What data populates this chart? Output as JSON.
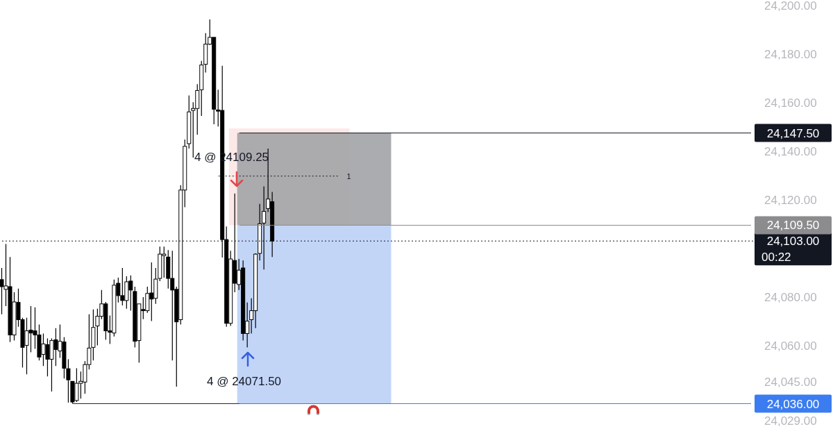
{
  "chart_data": {
    "type": "candlestick",
    "categories": [
      null,
      null,
      null,
      null,
      null,
      null,
      null,
      null,
      null,
      null,
      null,
      null,
      null,
      null,
      null,
      null,
      null,
      null,
      null,
      null,
      null,
      null,
      null,
      null,
      null,
      null,
      null,
      null,
      null,
      null,
      null,
      null,
      null,
      null,
      null,
      null,
      null,
      null,
      null,
      null,
      null,
      null,
      null,
      null,
      null,
      null,
      null,
      null,
      null,
      null,
      null,
      null,
      null,
      null,
      null,
      null,
      null,
      null,
      null,
      null,
      null,
      null,
      null,
      null,
      null,
      null,
      null,
      null,
      null,
      null,
      null,
      null,
      null,
      null,
      null,
      null,
      null,
      null,
      null,
      null,
      null,
      null,
      null,
      null,
      null,
      null,
      null,
      null,
      null,
      null,
      null,
      null,
      null,
      null,
      null,
      null,
      null,
      null,
      null,
      null,
      null,
      null,
      null,
      null,
      null,
      null,
      null,
      null,
      null,
      null,
      null,
      null,
      null,
      null,
      null,
      null,
      null,
      null,
      null,
      null,
      null,
      null,
      null,
      null,
      null,
      null,
      null,
      null,
      null,
      null,
      null,
      null,
      null,
      null,
      null,
      null,
      null,
      null,
      null,
      null,
      null,
      null,
      null,
      null,
      null,
      null,
      null,
      null,
      null,
      null,
      null,
      null,
      null,
      null,
      null,
      null,
      null,
      null,
      null,
      null,
      null,
      null,
      null,
      null,
      null,
      null,
      null,
      null,
      null,
      null,
      null,
      null,
      null,
      null,
      null,
      null,
      null,
      null,
      null,
      null,
      null
    ],
    "ohlc": [
      [
        24087.1,
        24091.9,
        24072.8,
        24084.2
      ],
      [
        24083.1,
        24101.8,
        24076.2,
        24084.5
      ],
      [
        24084.2,
        24096.4,
        24061.4,
        24064.3
      ],
      [
        24064.3,
        24081.9,
        24062.0,
        24077.9
      ],
      [
        24077.7,
        24083.4,
        24067.7,
        24070.6
      ],
      [
        24070.6,
        24071.4,
        24050.9,
        24059.2
      ],
      [
        24060.0,
        24071.4,
        24048.1,
        24066.0
      ],
      [
        24066.3,
        24076.2,
        24057.2,
        24065.1
      ],
      [
        24066.0,
        24075.7,
        24058.6,
        24064.3
      ],
      [
        24064.3,
        24068.6,
        24053.8,
        24055.2
      ],
      [
        24056.3,
        24064.9,
        24051.5,
        24060.6
      ],
      [
        24060.3,
        24062.9,
        24047.2,
        24054.3
      ],
      [
        24054.3,
        24062.9,
        24041.0,
        24062.0
      ],
      [
        24062.3,
        24067.1,
        24051.5,
        24058.3
      ],
      [
        24057.7,
        24068.6,
        24054.9,
        24061.7
      ],
      [
        24061.4,
        24063.4,
        24046.4,
        24050.6
      ],
      [
        24050.4,
        24054.3,
        24036.4,
        24045.8
      ],
      [
        24045.2,
        24045.2,
        24036.0,
        24036.7
      ],
      [
        24037.3,
        24050.6,
        24036.7,
        24044.4
      ],
      [
        24044.4,
        24049.2,
        24038.1,
        24045.2
      ],
      [
        24044.9,
        24053.5,
        24040.1,
        24052.1
      ],
      [
        24052.1,
        24072.8,
        24050.1,
        24058.9
      ],
      [
        24059.2,
        24074.8,
        24053.8,
        24067.4
      ],
      [
        24068.0,
        24075.1,
        24060.0,
        24072.0
      ],
      [
        24072.0,
        24082.8,
        24070.8,
        24077.1
      ],
      [
        24077.1,
        24077.9,
        24062.3,
        24066.0
      ],
      [
        24066.0,
        24072.3,
        24060.6,
        24065.4
      ],
      [
        24065.1,
        24087.1,
        24063.7,
        24084.8
      ],
      [
        24085.6,
        24087.9,
        24077.7,
        24080.5
      ],
      [
        24080.5,
        24091.9,
        24076.5,
        24078.5
      ],
      [
        24078.5,
        24088.5,
        24075.1,
        24086.2
      ],
      [
        24086.5,
        24088.8,
        24074.3,
        24082.8
      ],
      [
        24082.2,
        24084.2,
        24059.2,
        24061.7
      ],
      [
        24062.0,
        24077.1,
        24052.9,
        24077.1
      ],
      [
        24074.8,
        24079.9,
        24070.8,
        24074.3
      ],
      [
        24074.3,
        24084.2,
        24073.4,
        24081.4
      ],
      [
        24081.6,
        24094.2,
        24070.0,
        24079.1
      ],
      [
        24079.4,
        24091.9,
        24077.1,
        24087.3
      ],
      [
        24087.6,
        24100.7,
        24086.5,
        24097.6
      ],
      [
        24097.0,
        24100.7,
        24087.9,
        24097.6
      ],
      [
        24096.4,
        24099.3,
        24083.4,
        24087.6
      ],
      [
        24087.6,
        24099.0,
        24053.8,
        24082.8
      ],
      [
        24083.1,
        24084.2,
        24043.0,
        24069.7
      ],
      [
        24070.6,
        24126.0,
        24068.6,
        24124.0
      ],
      [
        24124.0,
        24144.8,
        24116.9,
        24142.0
      ],
      [
        24143.1,
        24163.0,
        24141.1,
        24156.2
      ],
      [
        24156.8,
        24160.2,
        24137.4,
        24157.6
      ],
      [
        24157.6,
        24167.6,
        24146.8,
        24165.0
      ],
      [
        24165.3,
        24177.2,
        24154.5,
        24175.5
      ],
      [
        24175.8,
        24188.6,
        24172.4,
        24184.1
      ],
      [
        24184.1,
        24194.3,
        24183.8,
        24186.9
      ],
      [
        24186.9,
        24186.9,
        24151.1,
        24157.3
      ],
      [
        24157.0,
        24165.3,
        24150.2,
        24156.5
      ],
      [
        24156.8,
        24175.2,
        24096.2,
        24103.6
      ],
      [
        24103.6,
        24109.0,
        24067.7,
        24069.1
      ],
      [
        24069.1,
        24099.0,
        24068.0,
        24095.6
      ],
      [
        24095.0,
        24122.6,
        24081.9,
        24085.6
      ],
      [
        24085.1,
        24095.6,
        24082.8,
        24091.0
      ],
      [
        24091.9,
        24095.0,
        24062.0,
        24064.9
      ],
      [
        24064.9,
        24077.7,
        24059.2,
        24070.0
      ],
      [
        24070.6,
        24079.4,
        24064.9,
        24074.3
      ],
      [
        24074.3,
        24097.9,
        24067.1,
        24097.6
      ],
      [
        24097.9,
        24118.3,
        24095.0,
        24110.1
      ],
      [
        24110.4,
        24125.5,
        24091.3,
        24115.2
      ],
      [
        24116.4,
        24141.1,
        24114.9,
        24120.3
      ],
      [
        24119.2,
        24123.2,
        24096.4,
        24103.0
      ],
      null,
      null,
      null,
      null,
      null,
      null,
      null,
      null,
      null,
      null,
      null,
      null,
      null,
      null,
      null,
      null,
      null,
      null,
      null,
      null,
      null,
      null,
      null,
      null,
      null,
      null,
      null,
      null,
      null,
      null,
      null,
      null,
      null,
      null,
      null,
      null,
      null,
      null,
      null,
      null,
      null,
      null,
      null,
      null,
      null,
      null,
      null,
      null,
      null,
      null,
      null,
      null,
      null,
      null,
      null,
      null,
      null,
      null,
      null,
      null,
      null,
      null,
      null,
      null,
      null,
      null,
      null,
      null,
      null,
      null,
      null,
      null,
      null,
      null,
      null,
      null,
      null,
      null,
      null,
      null,
      null,
      null,
      null,
      null,
      null,
      null,
      null,
      null,
      null,
      null,
      null,
      null,
      null,
      null,
      null,
      null,
      null,
      null,
      null,
      null,
      null,
      null,
      null,
      null,
      null,
      null,
      null,
      null,
      null,
      null,
      null,
      null,
      null,
      null,
      null
    ],
    "ylim": [
      24029,
      24200
    ],
    "yticks": [
      {
        "value": 24029,
        "label": "24,029.00"
      },
      {
        "value": 24045,
        "label": "24,045.00"
      },
      {
        "value": 24060,
        "label": "24,060.00"
      },
      {
        "value": 24080,
        "label": "24,080.00"
      },
      {
        "value": 24120,
        "label": "24,120.00"
      },
      {
        "value": 24140,
        "label": "24,140.00"
      },
      {
        "value": 24160,
        "label": "24,160.00"
      },
      {
        "value": 24180,
        "label": "24,180.00"
      },
      {
        "value": 24200,
        "label": "24,200.00"
      }
    ],
    "tick_labels": "y",
    "bands": [
      {
        "axis": "y",
        "from": 24109.5,
        "to": 24149.4,
        "color": "#fde8e8"
      },
      {
        "axis": "y",
        "from": 24109.5,
        "to": 24147.5,
        "color": "#a2a3a6"
      },
      {
        "axis": "y",
        "from": 24036,
        "to": 24109.5,
        "color": "#c2d5f7"
      }
    ],
    "ref_lines": [
      {
        "axis": "y",
        "value": 24103,
        "line_style": "dotted",
        "color": "#131722",
        "label": "24,103.00"
      },
      {
        "axis": "y",
        "value": 24129.75,
        "line_style": "dotted",
        "color": "#131722"
      },
      {
        "axis": "y",
        "value": 24036,
        "line_style": "solid",
        "color": "#1b2440"
      },
      {
        "axis": "y",
        "value": 24147.5,
        "line_style": "solid",
        "color": "#131722",
        "label": "24,147.50"
      },
      {
        "axis": "y",
        "value": 24109.5,
        "line_style": "solid",
        "color": "#8c8c8e",
        "label": "24,109.50"
      },
      {
        "axis": "y",
        "value": 24036,
        "line_style": "solid",
        "color": "#3b7cf0",
        "label": "24,036.00"
      }
    ],
    "annotations": [
      "4 @ 24109.25",
      "4 @ 24071.50",
      "00:22",
      {
        "text": "1",
        "y": 24129.75
      }
    ]
  }
}
